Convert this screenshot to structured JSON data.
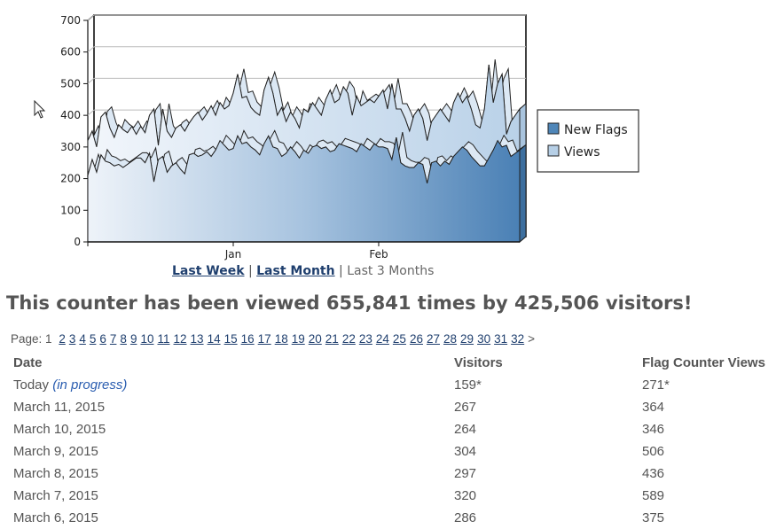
{
  "chart_data": {
    "type": "area",
    "ylim": [
      0,
      700
    ],
    "yticks": [
      0,
      100,
      200,
      300,
      400,
      500,
      600,
      700
    ],
    "xticks": [
      {
        "label": "Jan",
        "index": 33
      },
      {
        "label": "Feb",
        "index": 66
      }
    ],
    "grid": true,
    "legend_position": "right",
    "series": [
      {
        "name": "New Flags",
        "color": "#4f86b8",
        "values": [
          210,
          260,
          220,
          275,
          255,
          250,
          240,
          245,
          235,
          245,
          255,
          265,
          265,
          250,
          280,
          190,
          260,
          270,
          220,
          240,
          250,
          230,
          215,
          275,
          280,
          270,
          275,
          285,
          270,
          290,
          320,
          305,
          290,
          295,
          335,
          310,
          315,
          300,
          290,
          275,
          310,
          335,
          300,
          295,
          270,
          280,
          300,
          285,
          265,
          290,
          280,
          300,
          305,
          295,
          300,
          285,
          290,
          310,
          305,
          300,
          295,
          285,
          310,
          300,
          290,
          310,
          300,
          300,
          295,
          260,
          330,
          250,
          240,
          235,
          235,
          250,
          245,
          185,
          250,
          255,
          240,
          255,
          245,
          270,
          285,
          300,
          290,
          270,
          255,
          240,
          240,
          265,
          290,
          320,
          300,
          305,
          270,
          280,
          290
        ]
      },
      {
        "name": "Views",
        "color": "#b6cfe6",
        "values": [
          320,
          350,
          300,
          395,
          410,
          360,
          330,
          370,
          355,
          345,
          365,
          340,
          365,
          345,
          400,
          420,
          305,
          420,
          350,
          330,
          360,
          370,
          350,
          375,
          395,
          410,
          385,
          405,
          430,
          400,
          440,
          420,
          430,
          470,
          530,
          455,
          460,
          425,
          410,
          400,
          480,
          520,
          470,
          400,
          425,
          380,
          410,
          390,
          360,
          420,
          410,
          440,
          420,
          400,
          450,
          480,
          440,
          450,
          490,
          470,
          400,
          460,
          430,
          440,
          450,
          440,
          460,
          480,
          420,
          500,
          420,
          420,
          390,
          350,
          400,
          420,
          390,
          320,
          380,
          400,
          420,
          400,
          380,
          440,
          470,
          440,
          460,
          420,
          370,
          360,
          420,
          560,
          440,
          500,
          530,
          340,
          380,
          400,
          420
        ]
      }
    ]
  },
  "range_links": {
    "last_week": "Last Week",
    "sep1": " | ",
    "last_month": "Last Month",
    "sep2": " | ",
    "last_3_months": "Last 3 Months"
  },
  "headline": {
    "prefix": "This counter has been viewed ",
    "views": "655,841",
    "middle": " times by ",
    "visitors": "425,506",
    "suffix": " visitors!"
  },
  "pagination": {
    "label": "Page:",
    "current": "1",
    "pages": [
      "2",
      "3",
      "4",
      "5",
      "6",
      "7",
      "8",
      "9",
      "10",
      "11",
      "12",
      "13",
      "14",
      "15",
      "16",
      "17",
      "18",
      "19",
      "20",
      "21",
      "22",
      "23",
      "24",
      "25",
      "26",
      "27",
      "28",
      "29",
      "30",
      "31",
      "32"
    ],
    "next": ">"
  },
  "table": {
    "headers": {
      "date": "Date",
      "visitors": "Visitors",
      "views": "Flag Counter Views"
    },
    "today": {
      "date": "Today",
      "note": "(in progress)",
      "visitors": "159*",
      "views": "271*"
    },
    "rows": [
      {
        "date": "March 11, 2015",
        "visitors": "267",
        "views": "364"
      },
      {
        "date": "March 10, 2015",
        "visitors": "264",
        "views": "346"
      },
      {
        "date": "March 9, 2015",
        "visitors": "304",
        "views": "506"
      },
      {
        "date": "March 8, 2015",
        "visitors": "297",
        "views": "436"
      },
      {
        "date": "March 7, 2015",
        "visitors": "320",
        "views": "589"
      },
      {
        "date": "March 6, 2015",
        "visitors": "286",
        "views": "375"
      }
    ]
  },
  "colors": {
    "link": "#1f3f6e",
    "in_progress": "#2a5db0",
    "text": "#555555"
  }
}
